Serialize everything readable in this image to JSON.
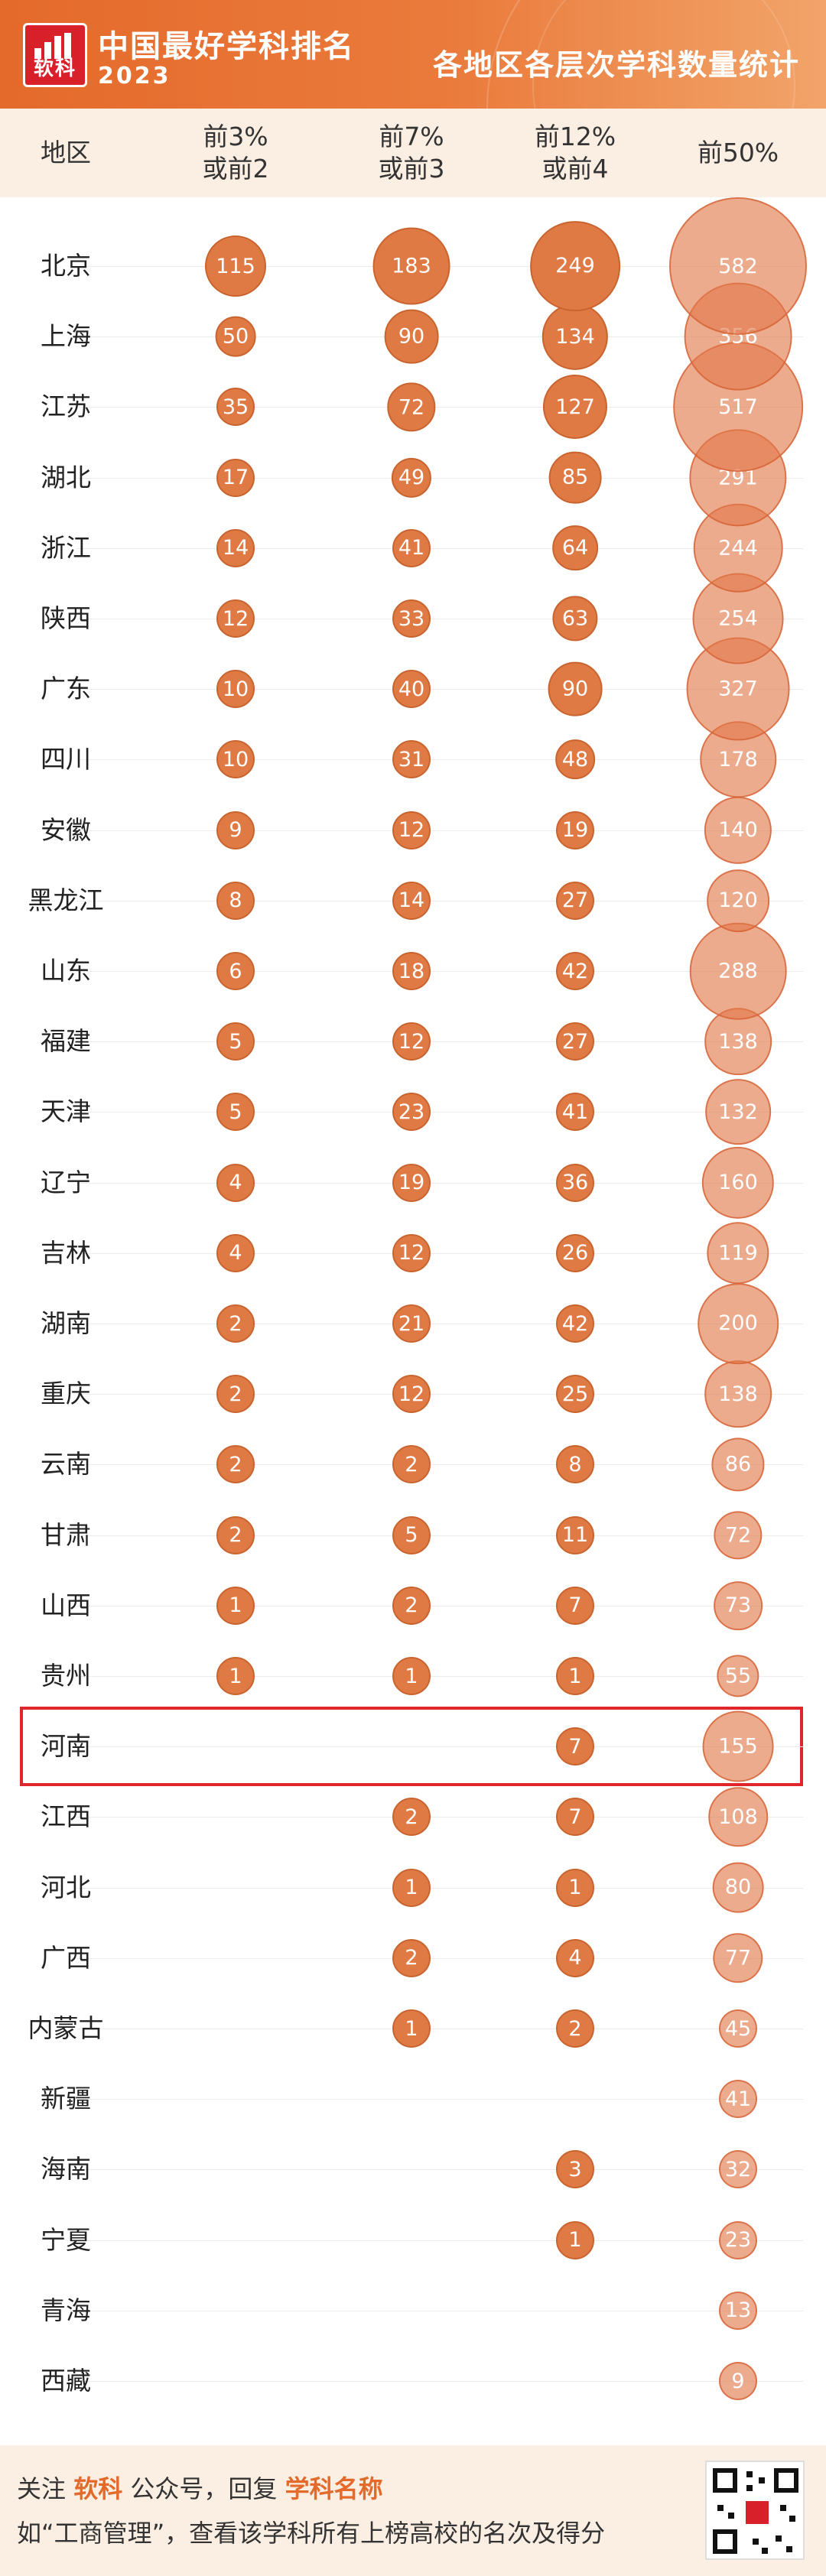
{
  "header": {
    "logo_text": "软科",
    "brand_title": "中国最好学科排名",
    "brand_year": "2023",
    "chart_title": "各地区各层次学科数量统计"
  },
  "columns": {
    "region": "地区",
    "top3": [
      "前3%",
      "或前2"
    ],
    "top7": [
      "前7%",
      "或前3"
    ],
    "top12": [
      "前12%",
      "或前4"
    ],
    "top50": [
      "前50%"
    ]
  },
  "colors": {
    "bubble_strong": "#e07a45",
    "bubble_top50": "#eaa27d",
    "header_orange": "#e46a2b",
    "highlight_red": "#e0262b",
    "bg_light": "#fbeee3"
  },
  "highlight_region": "河南",
  "footer": {
    "line1_a": "关注 ",
    "line1_brand": "软科",
    "line1_b": " 公众号，回复 ",
    "line1_keyword": "学科名称",
    "line2": "如“工商管理”，查看该学科所有上榜高校的名次及得分"
  },
  "chart_data": {
    "type": "bubble_table",
    "title": "各地区各层次学科数量统计",
    "series_names": [
      "前3%或前2",
      "前7%或前3",
      "前12%或前4",
      "前50%"
    ],
    "rows": [
      {
        "region": "北京",
        "values": [
          115,
          183,
          249,
          582
        ]
      },
      {
        "region": "上海",
        "values": [
          50,
          90,
          134,
          356
        ]
      },
      {
        "region": "江苏",
        "values": [
          35,
          72,
          127,
          517
        ]
      },
      {
        "region": "湖北",
        "values": [
          17,
          49,
          85,
          291
        ]
      },
      {
        "region": "浙江",
        "values": [
          14,
          41,
          64,
          244
        ]
      },
      {
        "region": "陕西",
        "values": [
          12,
          33,
          63,
          254
        ]
      },
      {
        "region": "广东",
        "values": [
          10,
          40,
          90,
          327
        ]
      },
      {
        "region": "四川",
        "values": [
          10,
          31,
          48,
          178
        ]
      },
      {
        "region": "安徽",
        "values": [
          9,
          12,
          19,
          140
        ]
      },
      {
        "region": "黑龙江",
        "values": [
          8,
          14,
          27,
          120
        ]
      },
      {
        "region": "山东",
        "values": [
          6,
          18,
          42,
          288
        ]
      },
      {
        "region": "福建",
        "values": [
          5,
          12,
          27,
          138
        ]
      },
      {
        "region": "天津",
        "values": [
          5,
          23,
          41,
          132
        ]
      },
      {
        "region": "辽宁",
        "values": [
          4,
          19,
          36,
          160
        ]
      },
      {
        "region": "吉林",
        "values": [
          4,
          12,
          26,
          119
        ]
      },
      {
        "region": "湖南",
        "values": [
          2,
          21,
          42,
          200
        ]
      },
      {
        "region": "重庆",
        "values": [
          2,
          12,
          25,
          138
        ]
      },
      {
        "region": "云南",
        "values": [
          2,
          2,
          8,
          86
        ]
      },
      {
        "region": "甘肃",
        "values": [
          2,
          5,
          11,
          72
        ]
      },
      {
        "region": "山西",
        "values": [
          1,
          2,
          7,
          73
        ]
      },
      {
        "region": "贵州",
        "values": [
          1,
          1,
          1,
          55
        ]
      },
      {
        "region": "河南",
        "values": [
          null,
          null,
          7,
          155
        ]
      },
      {
        "region": "江西",
        "values": [
          null,
          2,
          7,
          108
        ]
      },
      {
        "region": "河北",
        "values": [
          null,
          1,
          1,
          80
        ]
      },
      {
        "region": "广西",
        "values": [
          null,
          2,
          4,
          77
        ]
      },
      {
        "region": "内蒙古",
        "values": [
          null,
          1,
          2,
          45
        ]
      },
      {
        "region": "新疆",
        "values": [
          null,
          null,
          null,
          41
        ]
      },
      {
        "region": "海南",
        "values": [
          null,
          null,
          3,
          32
        ]
      },
      {
        "region": "宁夏",
        "values": [
          null,
          null,
          1,
          23
        ]
      },
      {
        "region": "青海",
        "values": [
          null,
          null,
          null,
          13
        ]
      },
      {
        "region": "西藏",
        "values": [
          null,
          null,
          null,
          9
        ]
      }
    ]
  }
}
